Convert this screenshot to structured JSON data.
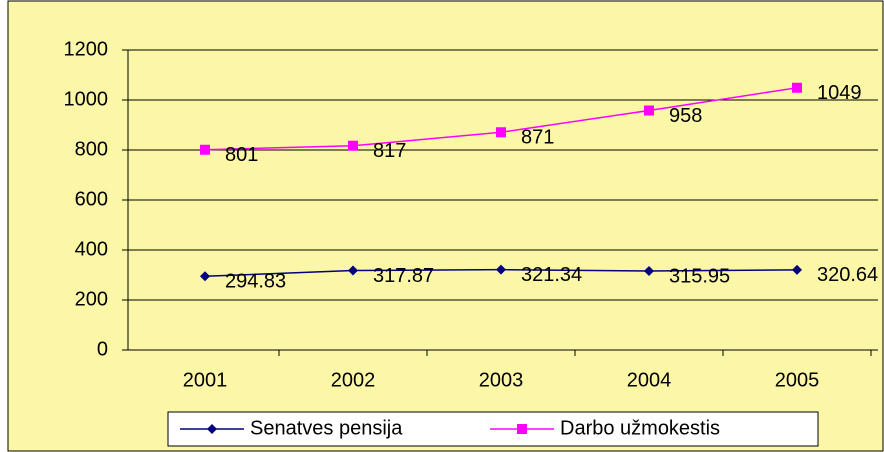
{
  "chart_data": {
    "type": "line",
    "categories": [
      "2001",
      "2002",
      "2003",
      "2004",
      "2005"
    ],
    "series": [
      {
        "name": "Senatves pensija",
        "color": "#000080",
        "marker": "diamond",
        "values": [
          294.83,
          317.87,
          321.34,
          315.95,
          320.64
        ]
      },
      {
        "name": "Darbo užmokestis",
        "color": "#ff00ff",
        "marker": "square",
        "values": [
          801,
          817,
          871,
          958,
          1049
        ]
      }
    ],
    "ylim": [
      0,
      1200
    ],
    "yticks": [
      0,
      200,
      400,
      600,
      800,
      1000,
      1200
    ],
    "grid": true,
    "legend": "bottom"
  }
}
